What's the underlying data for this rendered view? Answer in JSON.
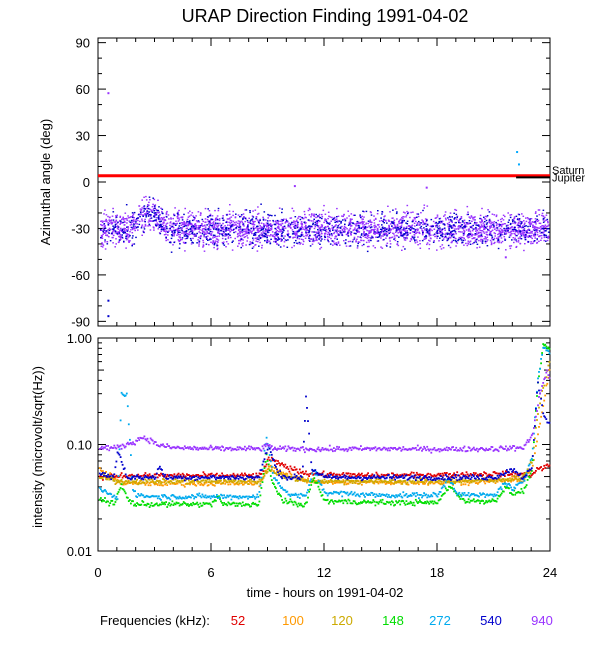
{
  "chart_data": [
    {
      "type": "scatter",
      "title": "URAP Direction Finding  1991-04-02",
      "xlabel": "",
      "ylabel": "Azimuthal angle (deg)",
      "xlim": [
        0,
        24
      ],
      "ylim": [
        -93,
        93
      ],
      "yticks": [
        90,
        60,
        30,
        0,
        -30,
        -60,
        -90
      ],
      "grid": false,
      "reference_lines": [
        {
          "name": "Saturn",
          "value": 4,
          "color": "#ff0000",
          "x_start": 0,
          "x_end": 24
        },
        {
          "name": "Jupiter",
          "value": 3,
          "color": "#000000",
          "x_start": 22.2,
          "x_end": 24
        }
      ],
      "series": [
        {
          "name": "940",
          "color": "#9933ff",
          "mean": -30,
          "spread": 6,
          "notes": "dense band of points from 0 to 24 h, hump to about -15 deg near 2-3 h"
        },
        {
          "name": "540",
          "color": "#0000cc",
          "mean": -30,
          "spread": 6,
          "notes": "overlapping points in the same band"
        }
      ],
      "outliers": [
        {
          "x": 0.5,
          "y": 58,
          "color": "#9933ff"
        },
        {
          "x": 0.5,
          "y": -76,
          "color": "#0000cc"
        },
        {
          "x": 0.5,
          "y": -86,
          "color": "#0000cc"
        },
        {
          "x": 22.2,
          "y": 20,
          "color": "#00aaff"
        },
        {
          "x": 22.3,
          "y": 12,
          "color": "#00aaff"
        },
        {
          "x": 17.4,
          "y": -3,
          "color": "#9933ff"
        },
        {
          "x": 10.4,
          "y": -2,
          "color": "#9933ff"
        },
        {
          "x": 21.6,
          "y": -48,
          "color": "#9933ff"
        }
      ]
    },
    {
      "type": "line",
      "title": "",
      "xlabel": "time - hours on 1991-04-02",
      "ylabel": "intensity (microvolt/sqrt(Hz))",
      "xlim": [
        0,
        24
      ],
      "ylim": [
        0.01,
        1.0
      ],
      "yscale": "log",
      "xticks": [
        0,
        6,
        12,
        18,
        24
      ],
      "yticks": [
        1.0,
        0.1,
        0.01
      ],
      "ytick_labels": [
        "1.00",
        "0.10",
        "0.01"
      ],
      "legend_title": "Frequencies (kHz):",
      "legend_position": "bottom",
      "series": [
        {
          "name": "52",
          "color": "#e00000",
          "x": [
            0,
            0.6,
            1,
            3,
            6,
            8.6,
            9,
            10,
            11,
            12,
            15,
            18,
            21,
            23,
            23.3,
            24
          ],
          "y": [
            0.05,
            0.05,
            0.052,
            0.052,
            0.052,
            0.052,
            0.075,
            0.062,
            0.055,
            0.053,
            0.052,
            0.053,
            0.054,
            0.053,
            0.06,
            0.065
          ]
        },
        {
          "name": "100",
          "color": "#ff9900",
          "x": [
            0,
            0.6,
            1,
            2,
            3,
            6,
            8.6,
            9,
            10,
            11,
            12,
            15,
            18,
            21,
            22.5,
            23,
            23.3,
            24
          ],
          "y": [
            0.06,
            0.052,
            0.045,
            0.044,
            0.044,
            0.044,
            0.044,
            0.065,
            0.052,
            0.047,
            0.045,
            0.045,
            0.045,
            0.046,
            0.048,
            0.06,
            0.12,
            0.6
          ]
        },
        {
          "name": "120",
          "color": "#ccaa00",
          "x": [
            0,
            0.6,
            1,
            3,
            6,
            8.6,
            9,
            10,
            11,
            12,
            15,
            18,
            21,
            22.5,
            23,
            23.3,
            24
          ],
          "y": [
            0.05,
            0.048,
            0.046,
            0.046,
            0.046,
            0.046,
            0.06,
            0.05,
            0.047,
            0.046,
            0.046,
            0.046,
            0.047,
            0.05,
            0.07,
            0.2,
            0.7
          ]
        },
        {
          "name": "148",
          "color": "#00dd00",
          "x": [
            0,
            0.4,
            0.8,
            1.2,
            1.6,
            2,
            3,
            6,
            6.3,
            6.6,
            8.5,
            8.9,
            9.2,
            9.8,
            10.5,
            11,
            11.4,
            12,
            15,
            18,
            18.6,
            19,
            19.5,
            21,
            21.6,
            22,
            22.6,
            23,
            23.3,
            23.6,
            24
          ],
          "y": [
            0.032,
            0.03,
            0.028,
            0.042,
            0.03,
            0.028,
            0.028,
            0.028,
            0.033,
            0.028,
            0.028,
            0.08,
            0.045,
            0.03,
            0.028,
            0.028,
            0.05,
            0.03,
            0.029,
            0.029,
            0.042,
            0.035,
            0.03,
            0.03,
            0.04,
            0.035,
            0.038,
            0.06,
            0.35,
            0.9,
            0.75
          ]
        },
        {
          "name": "272",
          "color": "#00aaee",
          "x": [
            0,
            0.5,
            1,
            1.2,
            1.5,
            1.8,
            2,
            3,
            6,
            8.5,
            8.9,
            9.3,
            10,
            11,
            11.4,
            12,
            15,
            18,
            18.6,
            19,
            19.6,
            21,
            21.6,
            22,
            22.6,
            23,
            23.3,
            23.6,
            24
          ],
          "y": [
            0.04,
            0.035,
            0.032,
            0.3,
            0.3,
            0.04,
            0.034,
            0.033,
            0.033,
            0.033,
            0.12,
            0.05,
            0.035,
            0.033,
            0.06,
            0.036,
            0.034,
            0.034,
            0.05,
            0.036,
            0.034,
            0.034,
            0.045,
            0.038,
            0.048,
            0.08,
            0.4,
            0.85,
            0.7
          ]
        },
        {
          "name": "540",
          "color": "#0000cc",
          "x": [
            0,
            0.8,
            1,
            1.5,
            2,
            3,
            3.2,
            3.5,
            6,
            8.5,
            9,
            9.5,
            10,
            10.8,
            11,
            11.3,
            12,
            15,
            18,
            21,
            22,
            22.5,
            23,
            23.3,
            23.6,
            24
          ],
          "y": [
            0.055,
            0.05,
            0.09,
            0.05,
            0.05,
            0.05,
            0.065,
            0.05,
            0.05,
            0.05,
            0.1,
            0.055,
            0.05,
            0.05,
            0.3,
            0.06,
            0.05,
            0.05,
            0.05,
            0.05,
            0.06,
            0.05,
            0.06,
            0.4,
            0.2,
            0.15
          ]
        },
        {
          "name": "940",
          "color": "#9933ff",
          "x": [
            0,
            1,
            2,
            2.3,
            2.8,
            3.2,
            4,
            6,
            8.6,
            9,
            9.4,
            10,
            12,
            15,
            18,
            21,
            22.5,
            23,
            23.4,
            23.8,
            24
          ],
          "y": [
            0.095,
            0.095,
            0.11,
            0.12,
            0.11,
            0.1,
            0.095,
            0.093,
            0.093,
            0.1,
            0.092,
            0.093,
            0.092,
            0.093,
            0.092,
            0.093,
            0.095,
            0.12,
            0.3,
            0.5,
            0.4
          ]
        }
      ]
    }
  ]
}
